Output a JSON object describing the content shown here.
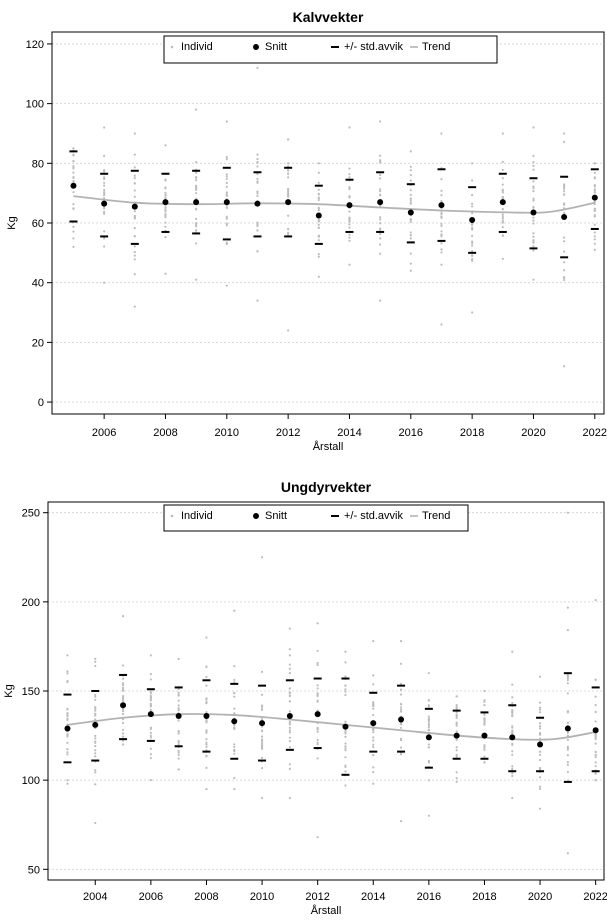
{
  "legend": {
    "individ": "Individ",
    "snitt": "Snitt",
    "std": "+/- std.avvik",
    "trend": "Trend"
  },
  "colors": {
    "individ": "#bdbdbd",
    "mean": "#000000",
    "trend": "#b3b3b3",
    "grid": "#d0d0d0"
  },
  "chart_data": [
    {
      "type": "scatter",
      "title": "Kalvvekter",
      "xlabel": "Årstall",
      "ylabel": "Kg",
      "xlim": [
        2004.3,
        2022.3
      ],
      "ylim": [
        -4,
        124
      ],
      "xticks": [
        2006,
        2008,
        2010,
        2012,
        2014,
        2016,
        2018,
        2020,
        2022
      ],
      "yticks": [
        0,
        20,
        40,
        60,
        80,
        100,
        120
      ],
      "grid": true,
      "legend_position": "top-center",
      "years": [
        2005,
        2006,
        2007,
        2008,
        2009,
        2010,
        2011,
        2012,
        2013,
        2014,
        2015,
        2016,
        2017,
        2018,
        2019,
        2020,
        2021,
        2022
      ],
      "mean": [
        72.5,
        66.5,
        65.5,
        67,
        67,
        67,
        66.5,
        67,
        62.5,
        66,
        67,
        63.5,
        66,
        61,
        67,
        63.5,
        62,
        68.5
      ],
      "upper_sd": [
        84,
        76.5,
        77.5,
        76.5,
        77.5,
        78.5,
        77,
        78.5,
        72.5,
        74.5,
        77,
        73,
        78,
        72,
        76.5,
        75,
        75.5,
        78
      ],
      "lower_sd": [
        60.5,
        55.5,
        53,
        57,
        56.5,
        54.5,
        55.5,
        55.5,
        53,
        57,
        57,
        53.5,
        54,
        50,
        57,
        51.5,
        48.5,
        58
      ],
      "trend": [
        [
          2005,
          69
        ],
        [
          2007,
          66.8
        ],
        [
          2009,
          66.3
        ],
        [
          2011,
          66.6
        ],
        [
          2013,
          66.3
        ],
        [
          2015,
          65.2
        ],
        [
          2017,
          64.2
        ],
        [
          2019,
          63.6
        ],
        [
          2020.5,
          63.7
        ],
        [
          2022,
          66.8
        ]
      ],
      "individual_ranges": [
        [
          52,
          85
        ],
        [
          40,
          92
        ],
        [
          32,
          90
        ],
        [
          43,
          86
        ],
        [
          41,
          98
        ],
        [
          39,
          94
        ],
        [
          34,
          112
        ],
        [
          24,
          88
        ],
        [
          42,
          80
        ],
        [
          46,
          92
        ],
        [
          34,
          94
        ],
        [
          44,
          84
        ],
        [
          26,
          90
        ],
        [
          30,
          80
        ],
        [
          48,
          90
        ],
        [
          41,
          92
        ],
        [
          12,
          90
        ],
        [
          51,
          80
        ]
      ]
    },
    {
      "type": "scatter",
      "title": "Ungdyrvekter",
      "xlabel": "Årstall",
      "ylabel": "Kg",
      "xlim": [
        2002.3,
        2022.3
      ],
      "ylim": [
        44,
        256
      ],
      "xticks": [
        2004,
        2006,
        2008,
        2010,
        2012,
        2014,
        2016,
        2018,
        2020,
        2022
      ],
      "yticks": [
        50,
        100,
        150,
        200,
        250
      ],
      "grid": true,
      "legend_position": "top-center",
      "years": [
        2003,
        2004,
        2005,
        2006,
        2007,
        2008,
        2009,
        2010,
        2011,
        2012,
        2013,
        2014,
        2015,
        2016,
        2017,
        2018,
        2019,
        2020,
        2021,
        2022
      ],
      "mean": [
        129,
        131,
        142,
        137,
        136,
        136,
        133,
        132,
        136,
        137,
        130,
        132,
        134,
        124,
        125,
        125,
        124,
        120,
        129,
        128
      ],
      "upper_sd": [
        148,
        150,
        159,
        151,
        152,
        156,
        154,
        153,
        156,
        157,
        157,
        149,
        153,
        140,
        139,
        138,
        142,
        135,
        160,
        152
      ],
      "lower_sd": [
        110,
        111,
        123,
        122,
        119,
        116,
        112,
        111,
        117,
        118,
        103,
        116,
        116,
        107,
        112,
        112,
        105,
        105,
        99,
        105
      ],
      "trend": [
        [
          2003,
          131
        ],
        [
          2005,
          135
        ],
        [
          2007,
          137
        ],
        [
          2009,
          136.5
        ],
        [
          2011,
          134
        ],
        [
          2013,
          131
        ],
        [
          2015,
          128
        ],
        [
          2017,
          125
        ],
        [
          2019,
          123
        ],
        [
          2020.5,
          123
        ],
        [
          2022,
          127
        ]
      ],
      "individual_ranges": [
        [
          98,
          170
        ],
        [
          76,
          168
        ],
        [
          120,
          192
        ],
        [
          100,
          170
        ],
        [
          106,
          168
        ],
        [
          95,
          180
        ],
        [
          95,
          195
        ],
        [
          90,
          225
        ],
        [
          90,
          185
        ],
        [
          68,
          188
        ],
        [
          97,
          172
        ],
        [
          98,
          178
        ],
        [
          77,
          178
        ],
        [
          80,
          160
        ],
        [
          99,
          147
        ],
        [
          110,
          150
        ],
        [
          90,
          172
        ],
        [
          84,
          158
        ],
        [
          59,
          250
        ],
        [
          100,
          201
        ]
      ]
    }
  ]
}
